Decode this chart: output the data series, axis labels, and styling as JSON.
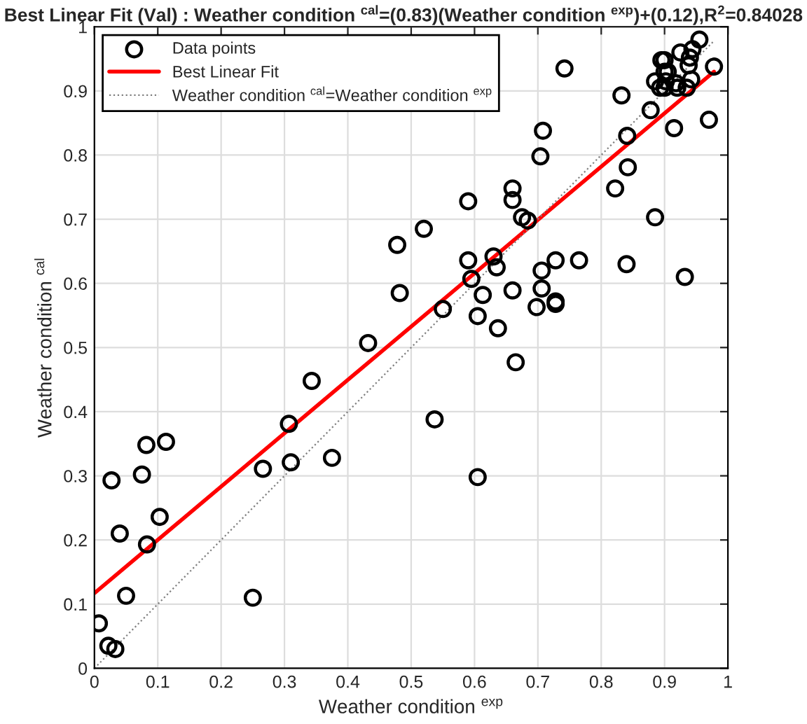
{
  "chart_data": {
    "type": "scatter",
    "title": "Best Linear Fit (Val) : Weather condition $^{cal}$=(0.83)(Weather condition $^{exp}$)+(0.12),R$^{2}$=0.84028",
    "xlabel": "Weather condition $^{exp}$",
    "ylabel": "Weather condition $^{cal}$",
    "xlim": [
      0,
      1
    ],
    "ylim": [
      0,
      1
    ],
    "xticks": [
      0,
      0.1,
      0.2,
      0.3,
      0.4,
      0.5,
      0.6,
      0.7,
      0.8,
      0.9,
      1
    ],
    "yticks": [
      0,
      0.1,
      0.2,
      0.3,
      0.4,
      0.5,
      0.6,
      0.7,
      0.8,
      0.9,
      1
    ],
    "grid": true,
    "legend": "top left",
    "series": [
      {
        "name": "Data points",
        "marker": "circle",
        "color": "#000000",
        "x": [
          0.007,
          0.022,
          0.033,
          0.05,
          0.04,
          0.027,
          0.075,
          0.082,
          0.113,
          0.083,
          0.103,
          0.25,
          0.266,
          0.307,
          0.31,
          0.343,
          0.375,
          0.432,
          0.478,
          0.482,
          0.52,
          0.537,
          0.55,
          0.59,
          0.59,
          0.595,
          0.605,
          0.605,
          0.613,
          0.63,
          0.635,
          0.637,
          0.66,
          0.66,
          0.66,
          0.665,
          0.675,
          0.684,
          0.698,
          0.704,
          0.708,
          0.706,
          0.706,
          0.728,
          0.728,
          0.728,
          0.742,
          0.765,
          0.822,
          0.832,
          0.84,
          0.841,
          0.842,
          0.878,
          0.885,
          0.885,
          0.893,
          0.895,
          0.9,
          0.9,
          0.9,
          0.902,
          0.905,
          0.915,
          0.918,
          0.92,
          0.925,
          0.932,
          0.935,
          0.938,
          0.94,
          0.942,
          0.944,
          0.955,
          0.97,
          0.978
        ],
        "values": [
          0.07,
          0.035,
          0.03,
          0.113,
          0.21,
          0.293,
          0.302,
          0.348,
          0.353,
          0.193,
          0.236,
          0.11,
          0.311,
          0.381,
          0.321,
          0.448,
          0.328,
          0.507,
          0.66,
          0.585,
          0.685,
          0.388,
          0.56,
          0.728,
          0.636,
          0.607,
          0.298,
          0.549,
          0.582,
          0.642,
          0.625,
          0.53,
          0.748,
          0.73,
          0.589,
          0.477,
          0.703,
          0.698,
          0.563,
          0.798,
          0.838,
          0.62,
          0.592,
          0.636,
          0.572,
          0.568,
          0.935,
          0.636,
          0.748,
          0.893,
          0.63,
          0.83,
          0.781,
          0.87,
          0.703,
          0.915,
          0.905,
          0.948,
          0.948,
          0.93,
          0.905,
          0.915,
          0.93,
          0.842,
          0.912,
          0.905,
          0.96,
          0.61,
          0.905,
          0.94,
          0.952,
          0.918,
          0.965,
          0.98,
          0.855,
          0.938
        ]
      },
      {
        "name": "Best Linear Fit",
        "type": "line",
        "line_style": "solid",
        "color": "#ff0000",
        "x": [
          0,
          0.978
        ],
        "values": [
          0.117,
          0.93
        ]
      },
      {
        "name": "Weather condition $^{cal}$=Weather condition $^{exp}$",
        "type": "line",
        "line_style": "dotted",
        "color": "#808080",
        "x": [
          0,
          0.978
        ],
        "values": [
          0,
          0.978
        ]
      }
    ]
  }
}
